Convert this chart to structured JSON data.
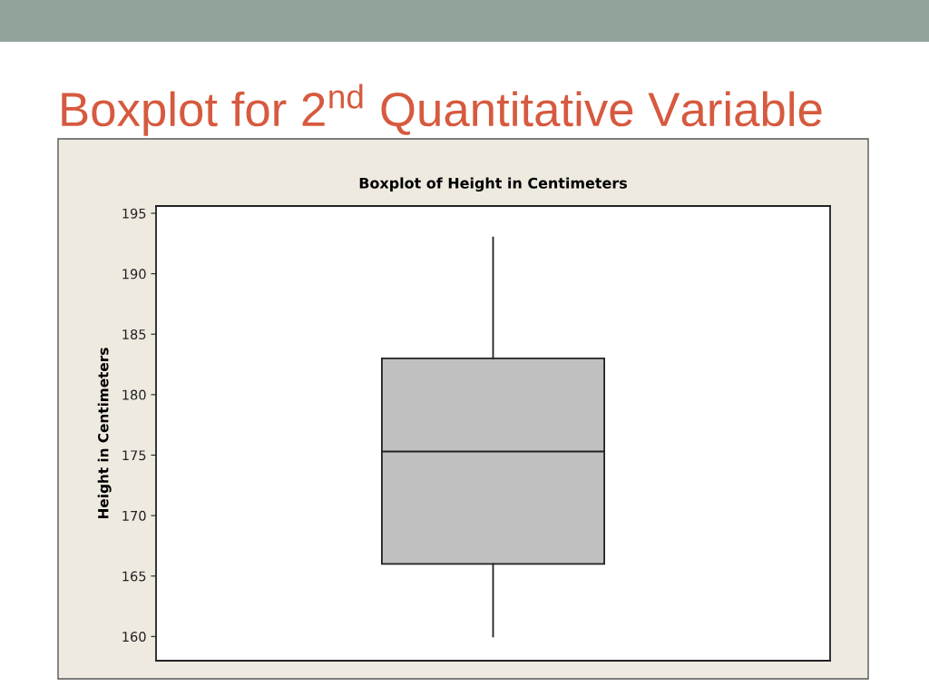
{
  "chart_data": {
    "type": "box",
    "title": "Boxplot for 2$^{nd}$ Quantitative Variable",
    "subtitle": "Boxplot of Height in Centimeters",
    "ylabel": "Height in Centimeters",
    "categories": [
      null
    ],
    "series": [
      {
        "color": "#c0c0c0",
        "boxes": [
          {
            "low": 160,
            "q1": 166,
            "median": 175.3,
            "q3": 183,
            "high": 193
          }
        ]
      }
    ],
    "ylim": [
      158,
      195.6
    ],
    "yticks": [
      160,
      165,
      170,
      175,
      180,
      185,
      190,
      195
    ],
    "tick_labels": "y"
  }
}
